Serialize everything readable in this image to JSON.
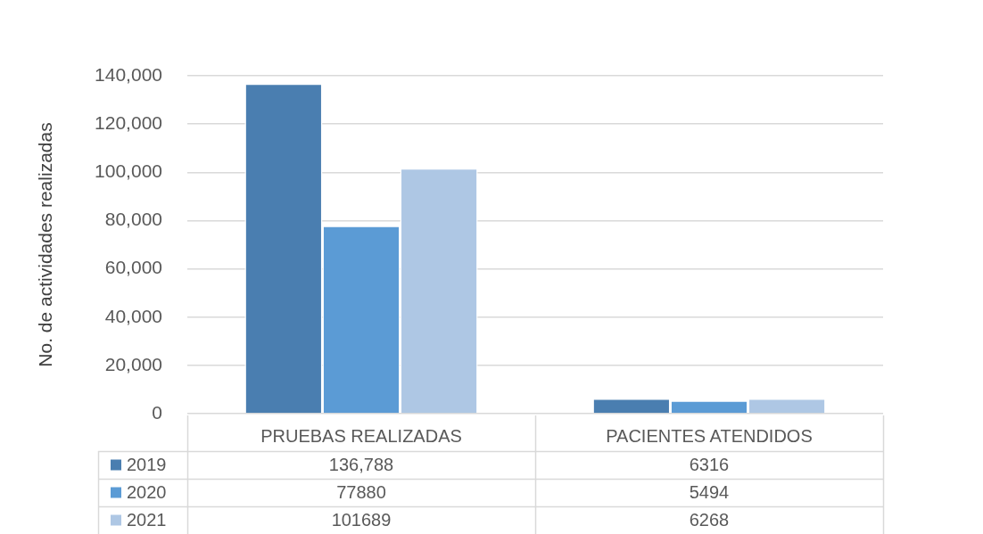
{
  "chart_data": {
    "type": "bar",
    "ylabel": "No. de actividades realizadas",
    "categories": [
      "PRUEBAS REALIZADAS",
      "PACIENTES ATENDIDOS"
    ],
    "series": [
      {
        "name": "2019",
        "color": "#4a7eb0",
        "values": [
          136788,
          6316
        ],
        "value_labels": [
          "136,788",
          "6316"
        ]
      },
      {
        "name": "2020",
        "color": "#5b9bd5",
        "values": [
          77880,
          5494
        ],
        "value_labels": [
          "77880",
          "5494"
        ]
      },
      {
        "name": "2021",
        "color": "#aec7e4",
        "values": [
          101689,
          6268
        ],
        "value_labels": [
          "101689",
          "6268"
        ]
      }
    ],
    "ylim": [
      0,
      140000
    ],
    "yticks": [
      {
        "value": 0,
        "label": "0"
      },
      {
        "value": 20000,
        "label": "20,000"
      },
      {
        "value": 40000,
        "label": "40,000"
      },
      {
        "value": 60000,
        "label": "60,000"
      },
      {
        "value": 80000,
        "label": "80,000"
      },
      {
        "value": 100000,
        "label": "100,000"
      },
      {
        "value": 120000,
        "label": "120,000"
      },
      {
        "value": 140000,
        "label": "140,000"
      }
    ],
    "grid": "y",
    "legend": "bottom"
  }
}
